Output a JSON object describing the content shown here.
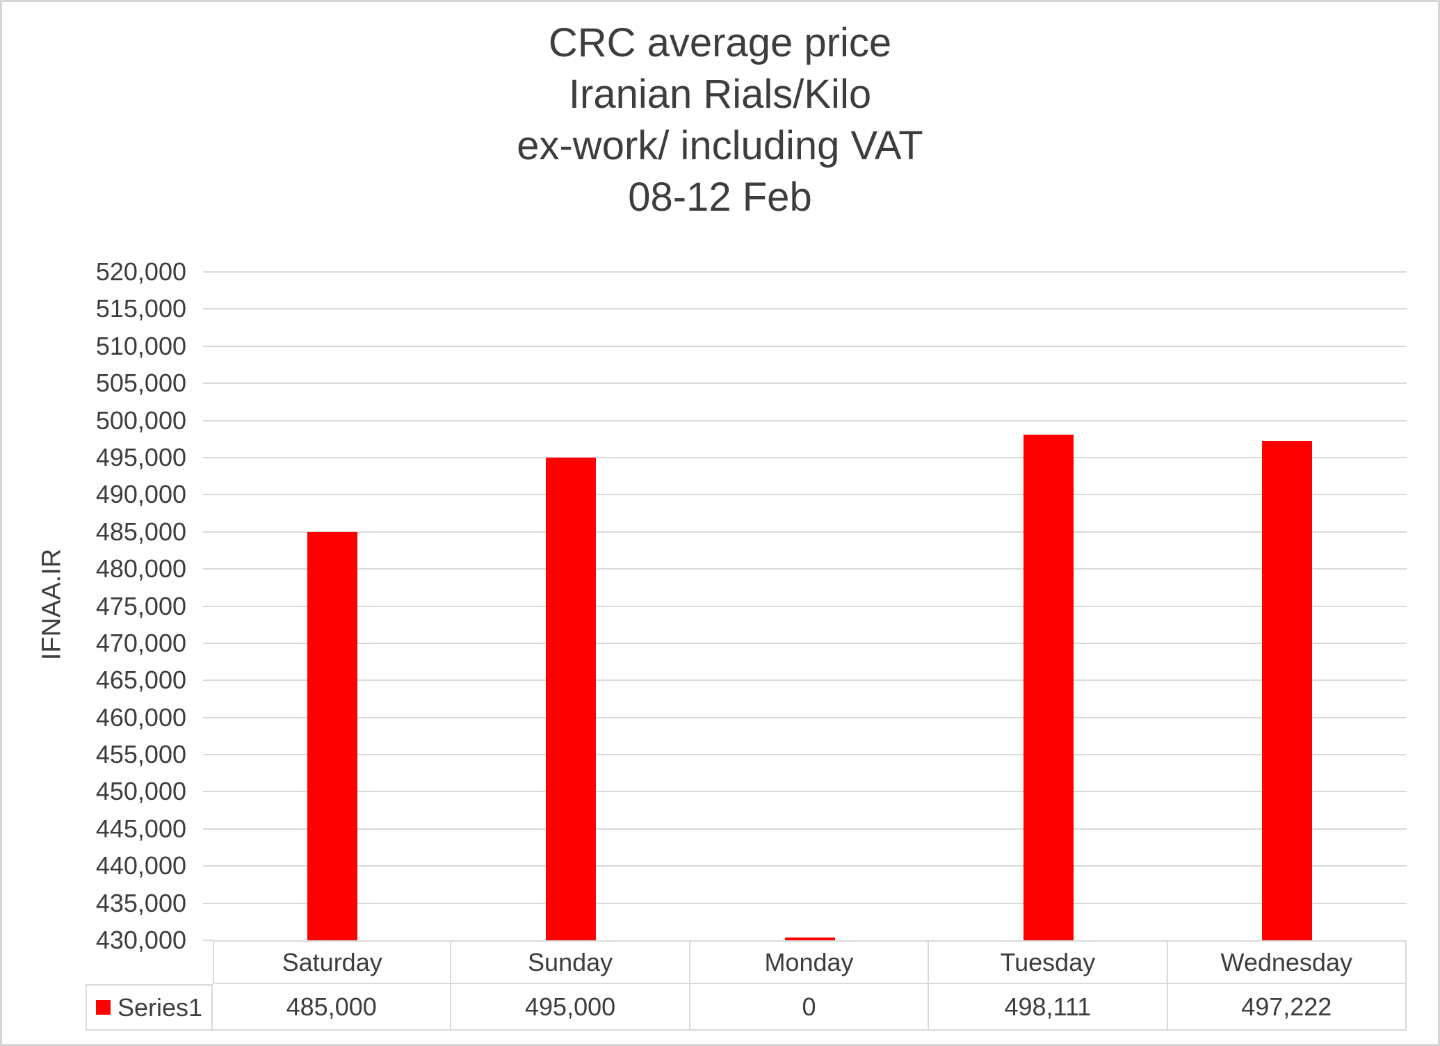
{
  "title": "CRC average price\nIranian Rials/Kilo\nex-work/ including VAT\n08-12 Feb",
  "y_axis_title": "IFNAA.IR",
  "legend": {
    "label": "Series1",
    "marker_color": "#ff0000"
  },
  "chart_data": {
    "type": "bar",
    "title": "CRC average price Iranian Rials/Kilo ex-work/ including VAT 08-12 Feb",
    "categories": [
      "Saturday",
      "Sunday",
      "Monday",
      "Tuesday",
      "Wednesday"
    ],
    "series": [
      {
        "name": "Series1",
        "values": [
          485000,
          495000,
          0,
          498111,
          497222
        ]
      }
    ],
    "value_labels": [
      "485,000",
      "495,000",
      "0",
      "498,111",
      "497,222"
    ],
    "xlabel": "",
    "ylabel": "IFNAA.IR",
    "ylim": [
      430000,
      520000
    ],
    "ytick_step": 5000,
    "ytick_labels": [
      "520,000",
      "515,000",
      "510,000",
      "505,000",
      "500,000",
      "495,000",
      "490,000",
      "485,000",
      "480,000",
      "475,000",
      "470,000",
      "465,000",
      "460,000",
      "455,000",
      "450,000",
      "445,000",
      "440,000",
      "435,000",
      "430,000"
    ],
    "grid": true,
    "bar_color": "#ff0000",
    "legend_position": "data-table-bottom"
  },
  "colors": {
    "bar": "#ff0000",
    "text": "#3d3d3d",
    "gridline": "#d9d9d9",
    "table_border": "#d9d9d9",
    "frame_border": "#d6d6d6",
    "background": "#ffffff"
  }
}
